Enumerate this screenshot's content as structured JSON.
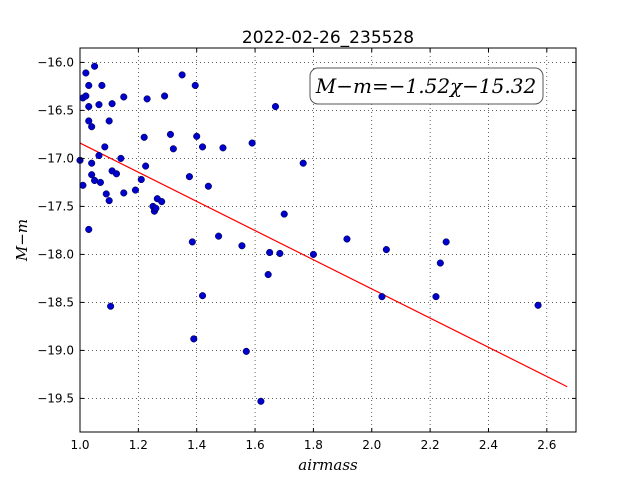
{
  "chart_data": {
    "type": "scatter",
    "title": "2022-02-26_235528",
    "xlabel": "airmass",
    "ylabel": "M−m",
    "xlim": [
      1.0,
      2.7
    ],
    "ylim": [
      -19.85,
      -15.85
    ],
    "y_inverted": true,
    "xticks": [
      1.0,
      1.2,
      1.4,
      1.6,
      1.8,
      2.0,
      2.2,
      2.4,
      2.6
    ],
    "xtick_labels": [
      "1.0",
      "1.2",
      "1.4",
      "1.6",
      "1.8",
      "2.0",
      "2.2",
      "2.4",
      "2.6"
    ],
    "yticks": [
      -16.0,
      -16.5,
      -17.0,
      -17.5,
      -18.0,
      -18.5,
      -19.0,
      -19.5
    ],
    "ytick_labels": [
      "−16.0",
      "−16.5",
      "−17.0",
      "−17.5",
      "−18.0",
      "−18.5",
      "−19.0",
      "−19.5"
    ],
    "grid": true,
    "annotation": "M−m=−1.52χ−15.32",
    "colors": {
      "points": "#0000cc",
      "fit": "#ff0000"
    },
    "fit_line": {
      "slope": -1.52,
      "intercept": -15.32,
      "x": [
        1.0,
        2.67
      ]
    },
    "points": [
      [
        1.0,
        -17.02
      ],
      [
        1.01,
        -16.37
      ],
      [
        1.01,
        -17.28
      ],
      [
        1.02,
        -16.11
      ],
      [
        1.02,
        -16.35
      ],
      [
        1.03,
        -16.24
      ],
      [
        1.03,
        -16.46
      ],
      [
        1.03,
        -16.61
      ],
      [
        1.03,
        -17.74
      ],
      [
        1.04,
        -16.67
      ],
      [
        1.04,
        -17.05
      ],
      [
        1.04,
        -17.17
      ],
      [
        1.05,
        -16.04
      ],
      [
        1.05,
        -17.23
      ],
      [
        1.065,
        -16.44
      ],
      [
        1.065,
        -16.97
      ],
      [
        1.07,
        -17.25
      ],
      [
        1.075,
        -16.24
      ],
      [
        1.085,
        -16.88
      ],
      [
        1.09,
        -17.37
      ],
      [
        1.1,
        -16.61
      ],
      [
        1.1,
        -17.44
      ],
      [
        1.105,
        -18.54
      ],
      [
        1.11,
        -16.43
      ],
      [
        1.11,
        -17.13
      ],
      [
        1.125,
        -17.16
      ],
      [
        1.14,
        -17.0
      ],
      [
        1.15,
        -16.36
      ],
      [
        1.15,
        -17.36
      ],
      [
        1.19,
        -17.33
      ],
      [
        1.21,
        -17.22
      ],
      [
        1.22,
        -16.78
      ],
      [
        1.225,
        -17.08
      ],
      [
        1.23,
        -16.38
      ],
      [
        1.25,
        -17.5
      ],
      [
        1.255,
        -17.55
      ],
      [
        1.26,
        -17.52
      ],
      [
        1.265,
        -17.42
      ],
      [
        1.28,
        -17.45
      ],
      [
        1.29,
        -16.35
      ],
      [
        1.31,
        -16.75
      ],
      [
        1.32,
        -16.9
      ],
      [
        1.35,
        -16.13
      ],
      [
        1.375,
        -17.19
      ],
      [
        1.385,
        -17.87
      ],
      [
        1.39,
        -18.88
      ],
      [
        1.395,
        -16.24
      ],
      [
        1.4,
        -16.77
      ],
      [
        1.42,
        -16.88
      ],
      [
        1.42,
        -18.43
      ],
      [
        1.44,
        -17.29
      ],
      [
        1.475,
        -17.81
      ],
      [
        1.49,
        -16.89
      ],
      [
        1.555,
        -17.91
      ],
      [
        1.57,
        -19.01
      ],
      [
        1.59,
        -16.84
      ],
      [
        1.62,
        -19.53
      ],
      [
        1.645,
        -18.21
      ],
      [
        1.65,
        -17.98
      ],
      [
        1.67,
        -16.46
      ],
      [
        1.685,
        -17.99
      ],
      [
        1.7,
        -17.58
      ],
      [
        1.765,
        -17.05
      ],
      [
        1.8,
        -18.0
      ],
      [
        1.915,
        -17.84
      ],
      [
        2.035,
        -18.44
      ],
      [
        2.05,
        -17.95
      ],
      [
        2.22,
        -18.44
      ],
      [
        2.235,
        -18.09
      ],
      [
        2.255,
        -17.87
      ],
      [
        2.57,
        -18.53
      ]
    ]
  }
}
